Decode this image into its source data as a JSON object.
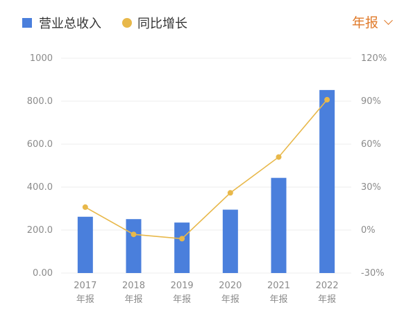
{
  "legend": {
    "revenue_label": "营业总收入",
    "growth_label": "同比增长"
  },
  "period_selector": {
    "label": "年报"
  },
  "colors": {
    "bar": "#4a7fdc",
    "line": "#e8b84a",
    "accent": "#e07a2a",
    "grid": "#ececec",
    "tick": "#8a8a8a"
  },
  "chart_data": {
    "type": "bar",
    "categories": [
      "2017",
      "2018",
      "2019",
      "2020",
      "2021",
      "2022"
    ],
    "category_sublabel": "年报",
    "series": [
      {
        "name": "营业总收入",
        "type": "bar",
        "axis": "left",
        "values": [
          262,
          251,
          235,
          295,
          443,
          852
        ]
      },
      {
        "name": "同比增长",
        "type": "line",
        "axis": "right",
        "values": [
          16,
          -3,
          -6,
          26,
          51,
          91
        ]
      }
    ],
    "y_left": {
      "ticks": [
        "0.00",
        "200.0",
        "400.0",
        "600.0",
        "800.0",
        "1000"
      ],
      "range": [
        0,
        1000
      ]
    },
    "y_right": {
      "ticks": [
        "-30%",
        "0%",
        "30%",
        "60%",
        "90%",
        "120%"
      ],
      "range": [
        -30,
        120
      ]
    },
    "grid": true,
    "legend_position": "top-left"
  }
}
